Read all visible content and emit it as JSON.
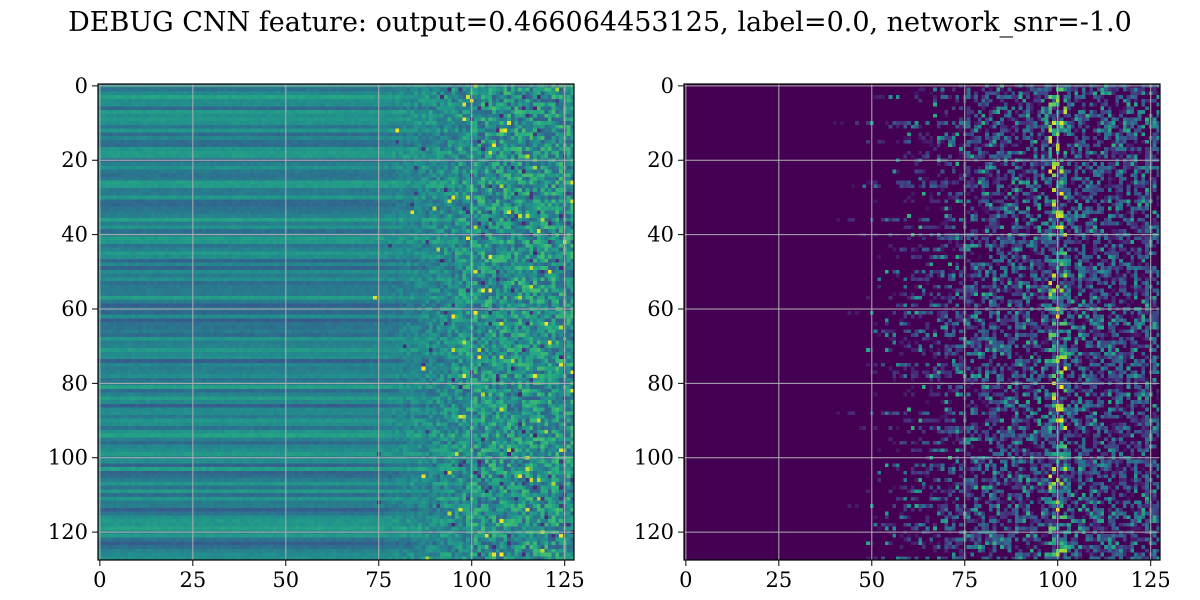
{
  "title": "DEBUG CNN feature: output=0.466064453125, label=0.0, network_snr=-1.0",
  "colors": {
    "viridis": [
      "#440154",
      "#472c7a",
      "#3b518b",
      "#2c718e",
      "#21908d",
      "#27ad81",
      "#5cc863",
      "#aadc32",
      "#fde725"
    ],
    "grid": "#b0b0b0",
    "axes": "#000000"
  },
  "chart_data": [
    {
      "type": "heatmap",
      "colormap": "viridis",
      "shape": [
        128,
        128
      ],
      "xlim": [
        0,
        127
      ],
      "ylim": [
        127,
        0
      ],
      "grid": true,
      "x_ticks": [
        0,
        25,
        50,
        75,
        100,
        125
      ],
      "y_ticks": [
        0,
        20,
        40,
        60,
        80,
        100,
        120
      ],
      "x_tick_labels": [
        "0",
        "25",
        "50",
        "75",
        "100",
        "125"
      ],
      "y_tick_labels": [
        "0",
        "20",
        "40",
        "60",
        "80",
        "100",
        "120"
      ],
      "description_of_pattern": "",
      "column_profile": {
        "left_value": 0.42,
        "right_value": 0.5,
        "transition_start_col": 72,
        "noise_left": 0.05,
        "noise_right": 0.2
      }
    },
    {
      "type": "heatmap",
      "colormap": "viridis",
      "shape": [
        128,
        128
      ],
      "xlim": [
        0,
        127
      ],
      "ylim": [
        127,
        0
      ],
      "grid": true,
      "x_ticks": [
        0,
        25,
        50,
        75,
        100,
        125
      ],
      "y_ticks": [
        0,
        20,
        40,
        60,
        80,
        100,
        120
      ],
      "x_tick_labels": [
        "0",
        "25",
        "50",
        "75",
        "100",
        "125"
      ],
      "y_tick_labels": [
        "0",
        "20",
        "40",
        "60",
        "80",
        "100",
        "120"
      ],
      "column_profile": {
        "left_value": 0.0,
        "onset_col": 38,
        "dense_start_col": 62,
        "peak_col": 100,
        "noise_right": 0.25
      }
    }
  ]
}
